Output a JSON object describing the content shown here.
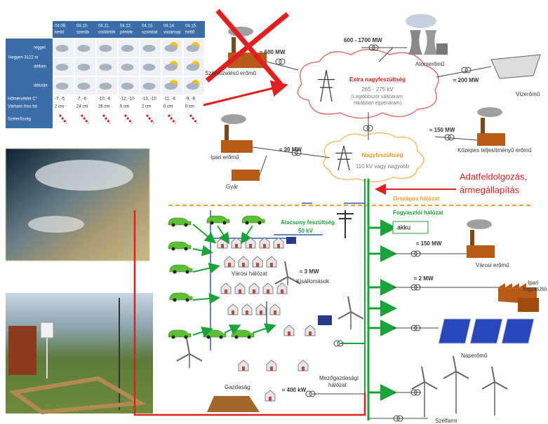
{
  "forecast": {
    "days": [
      {
        "date": "04.09.",
        "day": "kedd"
      },
      {
        "date": "04.10.",
        "day": "szerda"
      },
      {
        "date": "04.11.",
        "day": "csütörtök"
      },
      {
        "date": "04.12.",
        "day": "péntek"
      },
      {
        "date": "04.13.",
        "day": "szombat"
      },
      {
        "date": "04.14.",
        "day": "vasárnap"
      },
      {
        "date": "04.15.",
        "day": "hétfő"
      }
    ],
    "location": "Hegyen 3122 m",
    "periods": [
      "reggel",
      "délben",
      "délután"
    ],
    "rows": [
      {
        "label": "Hőmérséklet C°",
        "values": [
          "-7, -5",
          "-7, -6",
          "-10, -6",
          "-12, -10",
          "-13, -10",
          "-11, -8",
          "-9, -6"
        ]
      },
      {
        "label": "Várható friss hó",
        "values": [
          "2 cm",
          "24 cm",
          "26 cm",
          "5 cm",
          "2 cm",
          "0 cm",
          "0 cm"
        ]
      }
    ],
    "wind_label": "Szélerősség"
  },
  "diagram": {
    "coal_power": "≈ 600 MW",
    "coal_label": "Széntüzelésű erőmű",
    "nuclear_power": "600 - 1700 MW",
    "nuclear_label": "Atomerőmű",
    "hydro_power": "≈ 200 MW",
    "hydro_label": "Vízerőmű",
    "ehv_title": "Extra nagyfeszültség",
    "ehv_voltage": "265 - 275 kV",
    "ehv_note_1": "(Legtöbbször váltóáram,",
    "ehv_note_2": "ritkábban egyenáram)",
    "medium_power": "≈ 150 MW",
    "medium_label": "Közepes teljesítményű erőmű",
    "industrial_plant_label": "Ipari erőmű",
    "industrial_plant_power": "≈ 30 MW",
    "hv_title": "Nagyfeszültség",
    "hv_voltage": "110 kV vagy nagyobb",
    "factory_label": "Gyár",
    "data_processing_1": "Adatfeldolgozás,",
    "data_processing_2": "ármegállapítás",
    "national_grid": "Országos hálózat",
    "consumer_grid": "Fogyasztói hálózat",
    "battery": "akku",
    "lv_title": "Alacsony feszültség",
    "lv_voltage": "50 kV",
    "city_plant_power": "≈ 150 MW",
    "city_plant_label": "Városi erőmű",
    "city_grid": "Városi hálózat",
    "substation_power": "≈ 3 MW",
    "substation_label": "Kisállomások",
    "industrial_consumer_power": "≈ 2 MW",
    "industrial_consumer_label_1": "Ipari",
    "industrial_consumer_label_2": "fogyasztó",
    "solar_label": "Naperőmű",
    "agri_grid_1": "Mezőgazdasági",
    "agri_grid_2": "hálózat",
    "farm_label": "Gazdaság",
    "farm_power": "≈ 400 kW",
    "wind_farm_label": "Szélfarm"
  }
}
